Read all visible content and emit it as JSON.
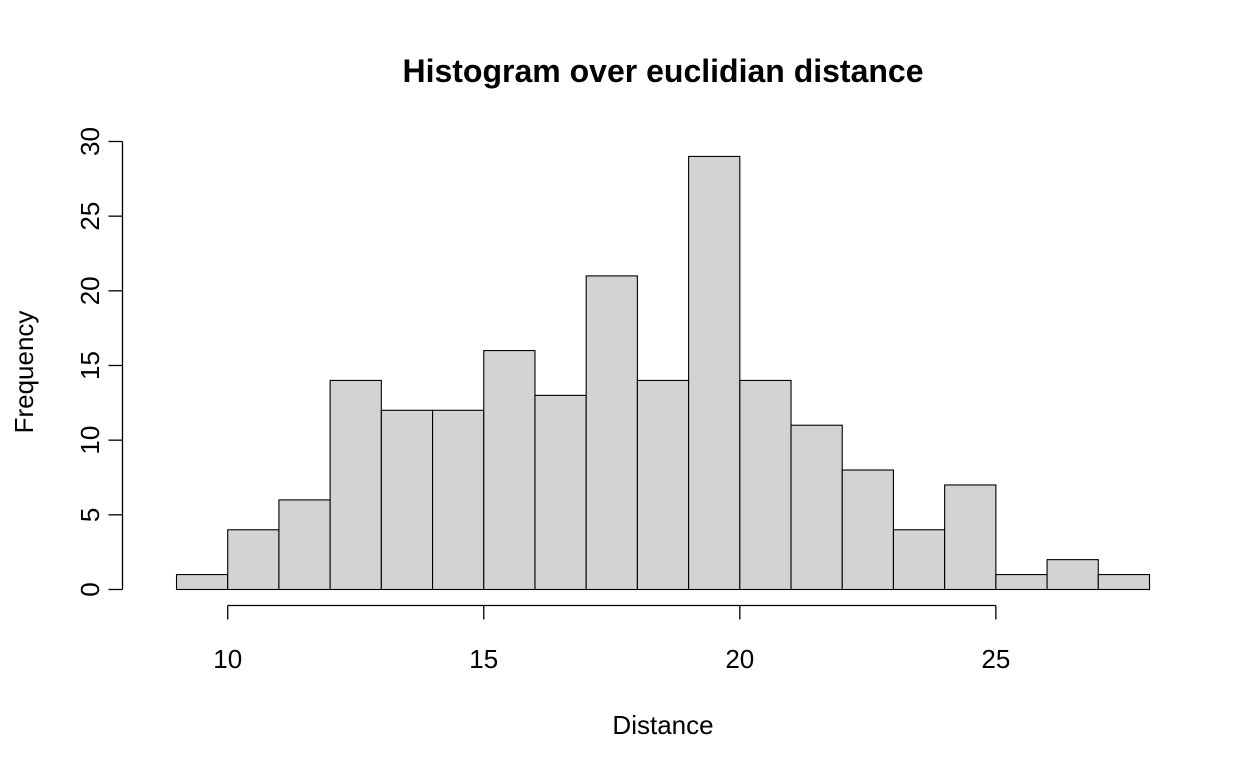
{
  "chart_data": {
    "type": "bar",
    "title": "Histogram over euclidian distance",
    "xlabel": "Distance",
    "ylabel": "Frequency",
    "bin_edges": [
      9,
      10,
      11,
      12,
      13,
      14,
      15,
      16,
      17,
      18,
      19,
      20,
      21,
      22,
      23,
      24,
      25,
      26,
      27,
      28
    ],
    "values": [
      1,
      4,
      6,
      14,
      12,
      12,
      16,
      13,
      21,
      14,
      29,
      14,
      11,
      8,
      4,
      7,
      1,
      2,
      1
    ],
    "xlim": [
      9,
      28
    ],
    "ylim": [
      0,
      30
    ],
    "x_ticks": [
      10,
      15,
      20,
      25
    ],
    "y_ticks": [
      0,
      5,
      10,
      15,
      20,
      25,
      30
    ],
    "bar_color": "#d3d3d3",
    "border_color": "#000000",
    "grid": false,
    "legend": "none"
  }
}
